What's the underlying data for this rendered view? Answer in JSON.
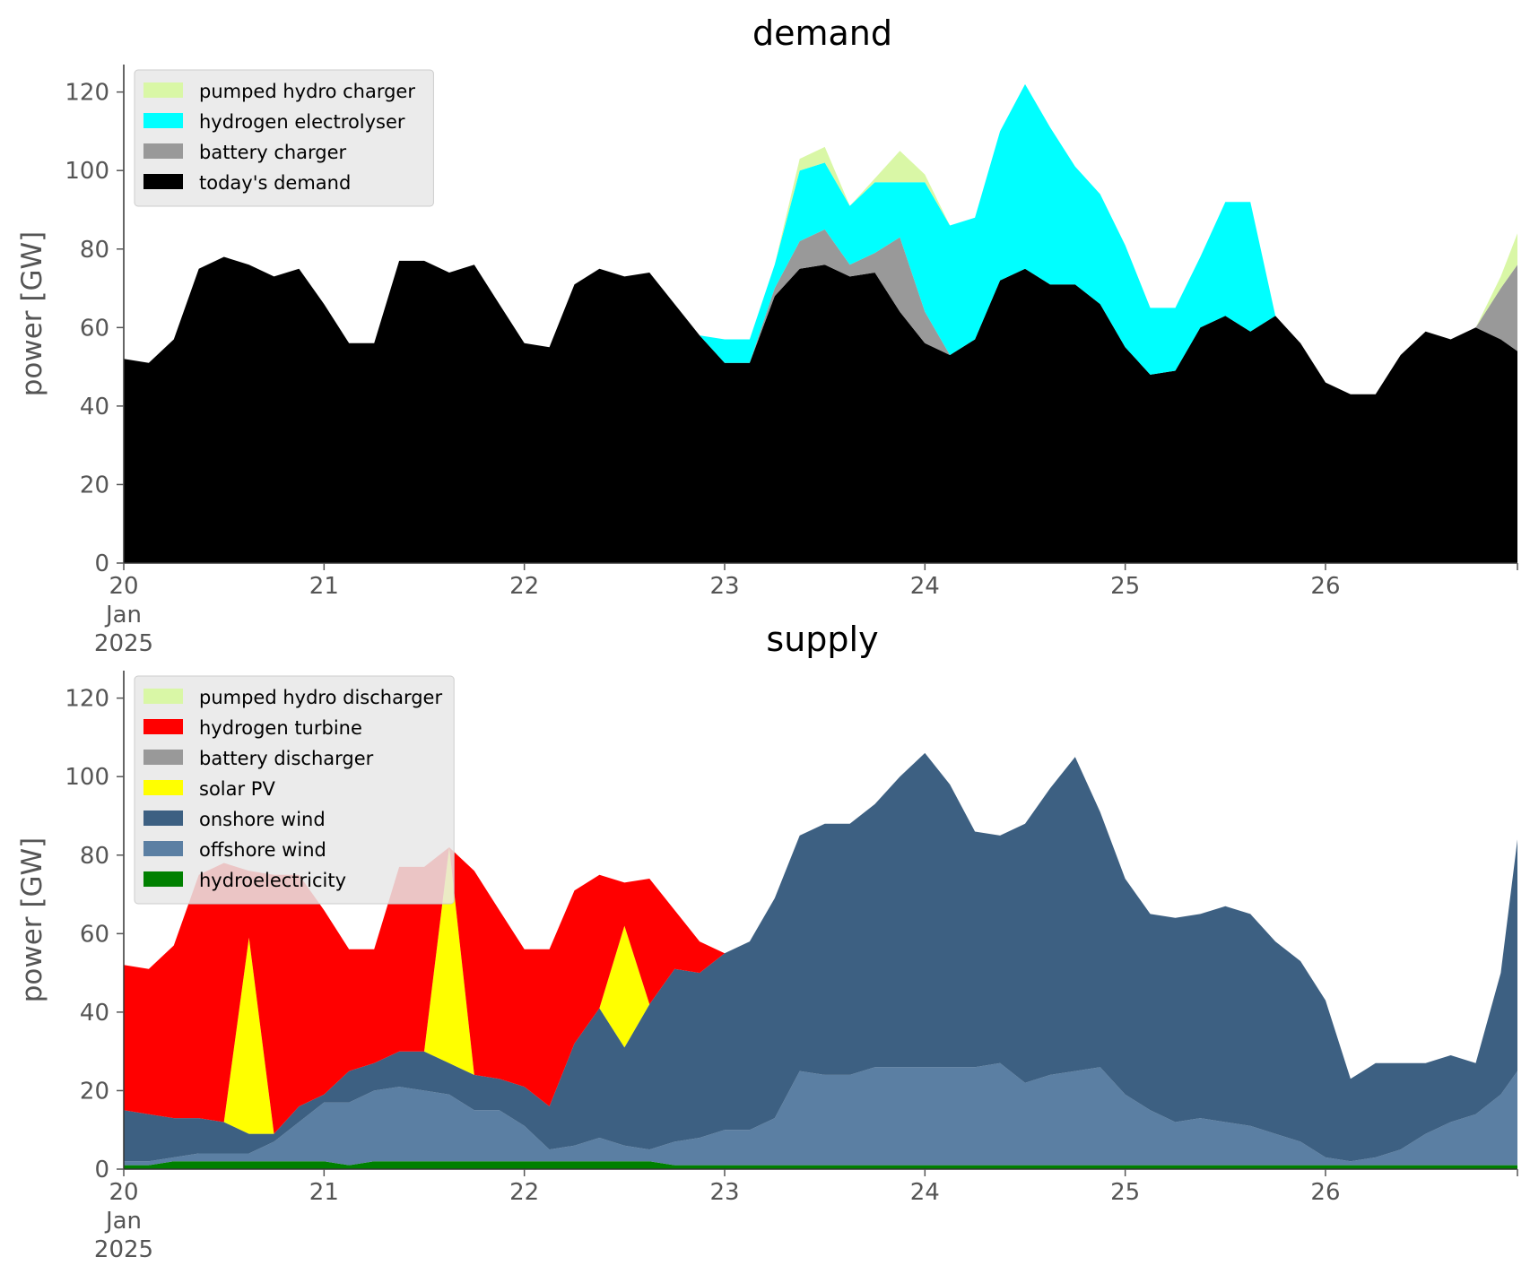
{
  "chart_data": [
    {
      "type": "area",
      "stacked": true,
      "title": "demand",
      "ylabel": "power [GW]",
      "xlabel": "",
      "x_tick_labels": [
        {
          "day": "20",
          "month": "Jan",
          "year": "2025"
        },
        {
          "day": "21"
        },
        {
          "day": "22"
        },
        {
          "day": "23"
        },
        {
          "day": "24"
        },
        {
          "day": "25"
        },
        {
          "day": "26"
        }
      ],
      "y_ticks": [
        "0",
        "20",
        "40",
        "60",
        "80",
        "100",
        "120"
      ],
      "xlim": [
        "2025-01-20 00:00",
        "2025-01-26 23:00"
      ],
      "ylim": [
        0,
        127
      ],
      "grid": false,
      "legend_position": "top-left",
      "x": [
        "2025-01-20 00:00",
        "2025-01-20 03:00",
        "2025-01-20 06:00",
        "2025-01-20 09:00",
        "2025-01-20 12:00",
        "2025-01-20 15:00",
        "2025-01-20 18:00",
        "2025-01-20 21:00",
        "2025-01-21 00:00",
        "2025-01-21 03:00",
        "2025-01-21 06:00",
        "2025-01-21 09:00",
        "2025-01-21 12:00",
        "2025-01-21 15:00",
        "2025-01-21 18:00",
        "2025-01-21 21:00",
        "2025-01-22 00:00",
        "2025-01-22 03:00",
        "2025-01-22 06:00",
        "2025-01-22 09:00",
        "2025-01-22 12:00",
        "2025-01-22 15:00",
        "2025-01-22 18:00",
        "2025-01-22 21:00",
        "2025-01-23 00:00",
        "2025-01-23 03:00",
        "2025-01-23 06:00",
        "2025-01-23 09:00",
        "2025-01-23 12:00",
        "2025-01-23 15:00",
        "2025-01-23 18:00",
        "2025-01-23 21:00",
        "2025-01-24 00:00",
        "2025-01-24 03:00",
        "2025-01-24 06:00",
        "2025-01-24 09:00",
        "2025-01-24 12:00",
        "2025-01-24 15:00",
        "2025-01-24 18:00",
        "2025-01-24 21:00",
        "2025-01-25 00:00",
        "2025-01-25 03:00",
        "2025-01-25 06:00",
        "2025-01-25 09:00",
        "2025-01-25 12:00",
        "2025-01-25 15:00",
        "2025-01-25 18:00",
        "2025-01-25 21:00",
        "2025-01-26 00:00",
        "2025-01-26 03:00",
        "2025-01-26 06:00",
        "2025-01-26 09:00",
        "2025-01-26 12:00",
        "2025-01-26 15:00",
        "2025-01-26 18:00",
        "2025-01-26 21:00",
        "2025-01-26 23:00"
      ],
      "series": [
        {
          "name": "today's demand",
          "color": "#000000",
          "values": [
            52,
            51,
            57,
            75,
            78,
            76,
            73,
            75,
            66,
            56,
            56,
            77,
            77,
            74,
            76,
            66,
            56,
            55,
            71,
            75,
            73,
            74,
            66,
            58,
            51,
            51,
            68,
            75,
            76,
            73,
            74,
            64,
            56,
            53,
            57,
            72,
            75,
            71,
            71,
            66,
            55,
            48,
            49,
            60,
            63,
            59,
            63,
            56,
            46,
            43,
            43,
            53,
            59,
            57,
            60,
            57,
            54
          ]
        },
        {
          "name": "battery charger",
          "color": "#999999",
          "values": [
            0,
            0,
            0,
            0,
            0,
            0,
            0,
            0,
            0,
            0,
            0,
            0,
            0,
            0,
            0,
            0,
            0,
            0,
            0,
            0,
            0,
            0,
            0,
            0,
            0,
            0,
            2,
            7,
            9,
            3,
            5,
            19,
            8,
            0,
            0,
            0,
            0,
            0,
            0,
            0,
            0,
            0,
            0,
            0,
            0,
            0,
            0,
            0,
            0,
            0,
            0,
            0,
            0,
            0,
            0,
            13,
            22
          ]
        },
        {
          "name": "hydrogen electrolyser",
          "color": "#00ffff",
          "values": [
            0,
            0,
            0,
            0,
            0,
            0,
            0,
            0,
            0,
            0,
            0,
            0,
            0,
            0,
            0,
            0,
            0,
            0,
            0,
            0,
            0,
            0,
            0,
            0,
            6,
            6,
            6,
            18,
            17,
            15,
            18,
            14,
            33,
            33,
            31,
            38,
            47,
            40,
            30,
            28,
            26,
            17,
            16,
            18,
            29,
            33,
            0,
            0,
            0,
            0,
            0,
            0,
            0,
            0,
            0,
            0,
            0
          ]
        },
        {
          "name": "pumped hydro charger",
          "color": "#d9f7a6",
          "values": [
            0,
            0,
            0,
            0,
            0,
            0,
            0,
            0,
            0,
            0,
            0,
            0,
            0,
            0,
            0,
            0,
            0,
            0,
            0,
            0,
            0,
            0,
            0,
            0,
            0,
            0,
            0,
            3,
            4,
            0,
            1,
            8,
            2,
            0,
            0,
            0,
            0,
            0,
            0,
            0,
            0,
            0,
            0,
            0,
            0,
            0,
            0,
            0,
            0,
            0,
            0,
            0,
            0,
            0,
            0,
            3,
            8
          ]
        }
      ],
      "legend_order": [
        "pumped hydro charger",
        "hydrogen electrolyser",
        "battery charger",
        "today's demand"
      ]
    },
    {
      "type": "area",
      "stacked": true,
      "title": "supply",
      "ylabel": "power [GW]",
      "xlabel": "",
      "x_tick_labels": [
        {
          "day": "20",
          "month": "Jan",
          "year": "2025"
        },
        {
          "day": "21"
        },
        {
          "day": "22"
        },
        {
          "day": "23"
        },
        {
          "day": "24"
        },
        {
          "day": "25"
        },
        {
          "day": "26"
        }
      ],
      "y_ticks": [
        "0",
        "20",
        "40",
        "60",
        "80",
        "100",
        "120"
      ],
      "xlim": [
        "2025-01-20 00:00",
        "2025-01-26 23:00"
      ],
      "ylim": [
        0,
        127
      ],
      "grid": false,
      "legend_position": "top-left",
      "x": [
        "2025-01-20 00:00",
        "2025-01-20 03:00",
        "2025-01-20 06:00",
        "2025-01-20 09:00",
        "2025-01-20 12:00",
        "2025-01-20 15:00",
        "2025-01-20 18:00",
        "2025-01-20 21:00",
        "2025-01-21 00:00",
        "2025-01-21 03:00",
        "2025-01-21 06:00",
        "2025-01-21 09:00",
        "2025-01-21 12:00",
        "2025-01-21 15:00",
        "2025-01-21 18:00",
        "2025-01-21 21:00",
        "2025-01-22 00:00",
        "2025-01-22 03:00",
        "2025-01-22 06:00",
        "2025-01-22 09:00",
        "2025-01-22 12:00",
        "2025-01-22 15:00",
        "2025-01-22 18:00",
        "2025-01-22 21:00",
        "2025-01-23 00:00",
        "2025-01-23 03:00",
        "2025-01-23 06:00",
        "2025-01-23 09:00",
        "2025-01-23 12:00",
        "2025-01-23 15:00",
        "2025-01-23 18:00",
        "2025-01-23 21:00",
        "2025-01-24 00:00",
        "2025-01-24 03:00",
        "2025-01-24 06:00",
        "2025-01-24 09:00",
        "2025-01-24 12:00",
        "2025-01-24 15:00",
        "2025-01-24 18:00",
        "2025-01-24 21:00",
        "2025-01-25 00:00",
        "2025-01-25 03:00",
        "2025-01-25 06:00",
        "2025-01-25 09:00",
        "2025-01-25 12:00",
        "2025-01-25 15:00",
        "2025-01-25 18:00",
        "2025-01-25 21:00",
        "2025-01-26 00:00",
        "2025-01-26 03:00",
        "2025-01-26 06:00",
        "2025-01-26 09:00",
        "2025-01-26 12:00",
        "2025-01-26 15:00",
        "2025-01-26 18:00",
        "2025-01-26 21:00",
        "2025-01-26 23:00"
      ],
      "series": [
        {
          "name": "hydroelectricity",
          "color": "#008000",
          "values": [
            1,
            1,
            2,
            2,
            2,
            2,
            2,
            2,
            2,
            1,
            2,
            2,
            2,
            2,
            2,
            2,
            2,
            2,
            2,
            2,
            2,
            2,
            1,
            1,
            1,
            1,
            1,
            1,
            1,
            1,
            1,
            1,
            1,
            1,
            1,
            1,
            1,
            1,
            1,
            1,
            1,
            1,
            1,
            1,
            1,
            1,
            1,
            1,
            1,
            1,
            1,
            1,
            1,
            1,
            1,
            1,
            1
          ]
        },
        {
          "name": "offshore wind",
          "color": "#5b7fa3",
          "values": [
            1,
            1,
            1,
            2,
            2,
            2,
            5,
            10,
            15,
            16,
            18,
            19,
            18,
            17,
            13,
            13,
            9,
            3,
            4,
            6,
            4,
            3,
            6,
            7,
            9,
            9,
            12,
            24,
            23,
            23,
            25,
            25,
            25,
            25,
            25,
            26,
            21,
            23,
            24,
            25,
            18,
            14,
            11,
            12,
            11,
            10,
            8,
            6,
            2,
            1,
            2,
            4,
            8,
            11,
            13,
            18,
            24
          ]
        },
        {
          "name": "onshore wind",
          "color": "#3d6082",
          "values": [
            13,
            12,
            10,
            9,
            8,
            5,
            2,
            4,
            2,
            8,
            7,
            9,
            10,
            8,
            9,
            8,
            10,
            11,
            26,
            33,
            25,
            37,
            44,
            42,
            45,
            48,
            56,
            60,
            64,
            64,
            67,
            74,
            80,
            72,
            60,
            58,
            66,
            73,
            80,
            65,
            55,
            50,
            52,
            52,
            55,
            54,
            49,
            46,
            40,
            21,
            24,
            22,
            18,
            17,
            13,
            31,
            59
          ]
        },
        {
          "name": "solar PV",
          "color": "#ffff00",
          "values": [
            0,
            0,
            0,
            0,
            0,
            50,
            0,
            0,
            0,
            0,
            0,
            0,
            0,
            55,
            0,
            0,
            0,
            0,
            0,
            0,
            31,
            0,
            0,
            0,
            0,
            0,
            0,
            0,
            0,
            0,
            0,
            0,
            0,
            0,
            0,
            0,
            0,
            0,
            0,
            0,
            0,
            0,
            0,
            0,
            0,
            0,
            0,
            0,
            0,
            0,
            0,
            0,
            0,
            0,
            0,
            0,
            0
          ]
        },
        {
          "name": "battery discharger",
          "color": "#999999",
          "values": [
            0,
            0,
            0,
            0,
            0,
            0,
            0,
            0,
            0,
            0,
            0,
            0,
            0,
            0,
            0,
            0,
            0,
            0,
            0,
            0,
            0,
            0,
            0,
            0,
            0,
            0,
            0,
            0,
            0,
            0,
            0,
            0,
            0,
            0,
            0,
            0,
            0,
            0,
            0,
            0,
            0,
            0,
            0,
            0,
            0,
            0,
            0,
            0,
            0,
            0,
            0,
            0,
            0,
            0,
            0,
            0,
            0
          ]
        },
        {
          "name": "hydrogen turbine",
          "color": "#ff0000",
          "values": [
            37,
            37,
            44,
            62,
            66,
            17,
            66,
            59,
            47,
            31,
            29,
            47,
            47,
            0,
            52,
            43,
            35,
            40,
            39,
            34,
            11,
            32,
            15,
            8,
            0,
            0,
            0,
            0,
            0,
            0,
            0,
            0,
            0,
            0,
            0,
            0,
            0,
            0,
            0,
            0,
            0,
            0,
            0,
            0,
            0,
            0,
            0,
            0,
            0,
            0,
            0,
            0,
            0,
            0,
            0,
            0,
            0
          ]
        },
        {
          "name": "pumped hydro discharger",
          "color": "#d9f7a6",
          "values": [
            0,
            0,
            0,
            0,
            0,
            0,
            0,
            0,
            0,
            0,
            0,
            0,
            0,
            0,
            0,
            0,
            0,
            0,
            0,
            0,
            0,
            0,
            0,
            0,
            0,
            0,
            0,
            0,
            0,
            0,
            0,
            0,
            0,
            0,
            0,
            0,
            0,
            0,
            0,
            0,
            0,
            0,
            0,
            0,
            0,
            0,
            0,
            0,
            0,
            0,
            0,
            0,
            0,
            0,
            0,
            0,
            0
          ]
        }
      ],
      "legend_order": [
        "pumped hydro discharger",
        "hydrogen turbine",
        "battery discharger",
        "solar PV",
        "onshore wind",
        "offshore wind",
        "hydroelectricity"
      ]
    }
  ]
}
